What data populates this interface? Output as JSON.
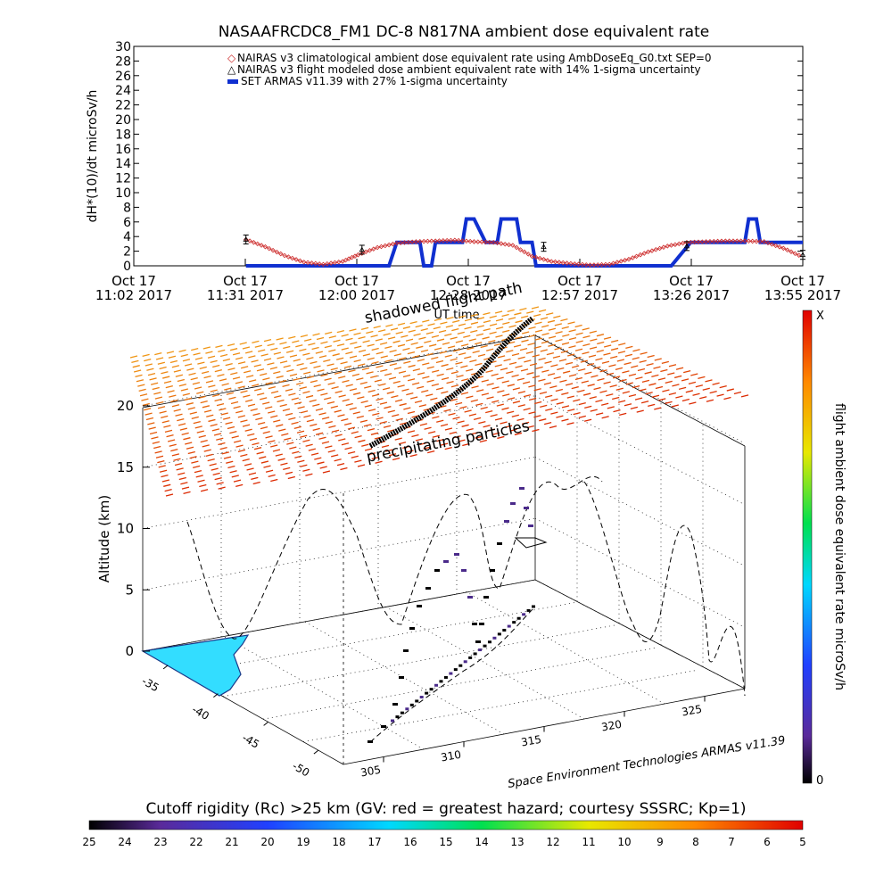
{
  "title": "NASAAFRCDC8_FM1 DC-8    N817NA ambient dose equivalent rate",
  "top_chart": {
    "ylabel": "dH*(10)/dt microSv/h",
    "xlabel": "UT time",
    "time_ticks": [
      {
        "line1": "Oct 17",
        "line2": "11:02 2017"
      },
      {
        "line1": "Oct 17",
        "line2": "11:31 2017"
      },
      {
        "line1": "Oct 17",
        "line2": "12:00 2017"
      },
      {
        "line1": "Oct 17",
        "line2": "12:28 2017"
      },
      {
        "line1": "Oct 17",
        "line2": "12:57 2017"
      },
      {
        "line1": "Oct 17",
        "line2": "13:26 2017"
      },
      {
        "line1": "Oct 17",
        "line2": "13:55 2017"
      }
    ],
    "legend": [
      "NAIRAS v3 climatological ambient dose equivalent rate using AmbDoseEq_G0.txt SEP=0",
      "NAIRAS v3 flight modeled dose ambient equivalent rate with 14% 1-sigma uncertainty",
      "SET ARMAS v11.39 with 27% 1-sigma uncertainty"
    ],
    "colors": {
      "nairas_clim": "#cc2a2a",
      "armas": "#1030d0",
      "nairas_flight": "#000000"
    }
  },
  "chart_data": [
    {
      "type": "line",
      "title": "NASAAFRCDC8_FM1 DC-8    N817NA ambient dose equivalent rate",
      "xlabel": "UT time",
      "ylabel": "dH*(10)/dt microSv/h",
      "x_range": [
        "2017-10-17 11:02",
        "2017-10-17 13:55"
      ],
      "ylim": [
        0,
        30
      ],
      "yticks": [
        0,
        2,
        4,
        6,
        8,
        10,
        12,
        14,
        16,
        18,
        20,
        22,
        24,
        26,
        28,
        30
      ],
      "series": [
        {
          "name": "NAIRAS v3 climatological ambient dose equivalent rate using AmbDoseEq_G0.txt SEP=0",
          "x": [
            "11:31",
            "11:36",
            "11:41",
            "11:46",
            "11:51",
            "11:56",
            "12:00",
            "12:05",
            "12:10",
            "12:15",
            "12:20",
            "12:25",
            "12:30",
            "12:35",
            "12:40",
            "12:45",
            "12:50",
            "12:55",
            "13:00",
            "13:05",
            "13:10",
            "13:15",
            "13:20",
            "13:25",
            "13:30",
            "13:35",
            "13:40",
            "13:45",
            "13:50",
            "13:55"
          ],
          "y": [
            3.6,
            2.6,
            1.4,
            0.5,
            0.2,
            0.6,
            1.5,
            2.5,
            3.1,
            3.3,
            3.4,
            3.5,
            3.3,
            3.2,
            2.8,
            1.3,
            0.6,
            0.3,
            0.1,
            0.2,
            0.9,
            1.9,
            2.7,
            3.2,
            3.3,
            3.4,
            3.4,
            3.3,
            2.4,
            1.2
          ]
        },
        {
          "name": "SET ARMAS v11.39 with 27% 1-sigma uncertainty",
          "x": [
            "11:31",
            "12:00",
            "12:08",
            "12:10",
            "12:16",
            "12:17",
            "12:19",
            "12:20",
            "12:27",
            "12:28",
            "12:30",
            "12:33",
            "12:36",
            "12:37",
            "12:41",
            "12:42",
            "12:45",
            "12:46",
            "13:08",
            "13:13",
            "13:21",
            "13:26",
            "13:40",
            "13:41",
            "13:43",
            "13:44",
            "13:55"
          ],
          "y": [
            0,
            0,
            0,
            3.2,
            3.2,
            0,
            0,
            3.2,
            3.2,
            6.4,
            6.4,
            3.2,
            3.2,
            6.4,
            6.4,
            3.2,
            3.2,
            0,
            0,
            0,
            0,
            3.2,
            3.2,
            6.4,
            6.4,
            3.2,
            3.2
          ]
        },
        {
          "name": "NAIRAS v3 flight modeled dose ambient equivalent rate with 14% 1-sigma uncertainty",
          "x": [
            "11:31",
            "12:01",
            "12:48",
            "13:25",
            "13:55"
          ],
          "y": [
            3.6,
            2.2,
            2.6,
            2.7,
            1.5
          ]
        }
      ]
    },
    {
      "type": "scatter",
      "subtype": "3d-flight-track",
      "zlabel": "Altitude (km)",
      "zticks": [
        0,
        5,
        10,
        15,
        20
      ],
      "x_ticks": [
        305,
        310,
        315,
        320,
        325
      ],
      "y_ticks": [
        -35,
        -40,
        -45,
        -50
      ],
      "annotations": [
        "shadowed flight path",
        "precipitating particles"
      ],
      "credit": "Space Environment Technologies ARMAS v11.39",
      "flight_track": {
        "lon": [
          304,
          305,
          306,
          307,
          308,
          309,
          310,
          311,
          312,
          313,
          314
        ],
        "lat": [
          -48,
          -46.5,
          -45,
          -43.5,
          -42,
          -40.5,
          -39,
          -37.5,
          -36,
          -34.5,
          -33
        ],
        "alt_km": [
          0,
          8,
          12,
          6,
          11.5,
          0.5,
          12,
          7,
          12.5,
          3,
          1
        ]
      },
      "z_colorbar": {
        "label": "flight ambient dose equivalent rate microSv/h",
        "min_label": "0",
        "max_label": "X"
      }
    },
    {
      "type": "heatmap",
      "title": "Cutoff rigidity (Rc) >25 km (GV: red = greatest hazard; courtesy SSSRC; Kp=1)",
      "values": [
        25,
        24,
        23,
        22,
        21,
        20,
        19,
        18,
        17,
        16,
        15,
        14,
        13,
        12,
        11,
        10,
        9,
        8,
        7,
        6,
        5
      ]
    }
  ],
  "scene3d": {
    "zlabel": "Altitude (km)",
    "zticks": [
      "0",
      "5",
      "10",
      "15",
      "20"
    ],
    "lon_ticks": [
      "305",
      "310",
      "315",
      "320",
      "325"
    ],
    "lat_ticks": [
      "-35",
      "-40",
      "-45",
      "-50"
    ],
    "annotation_shadow": "shadowed flight path",
    "annotation_precip": "precipitating particles",
    "credit": "Space Environment Technologies ARMAS v11.39",
    "land_color": "#33ddff"
  },
  "right_colorbar": {
    "label": "flight ambient dose equivalent rate microSv/h",
    "top": "X",
    "bottom": "0"
  },
  "bottom_colorbar": {
    "title": "Cutoff rigidity (Rc) >25 km (GV: red = greatest hazard; courtesy SSSRC; Kp=1)",
    "labels": [
      "25",
      "24",
      "23",
      "22",
      "21",
      "20",
      "19",
      "18",
      "17",
      "16",
      "15",
      "14",
      "13",
      "12",
      "11",
      "10",
      "9",
      "8",
      "7",
      "6",
      "5"
    ]
  }
}
